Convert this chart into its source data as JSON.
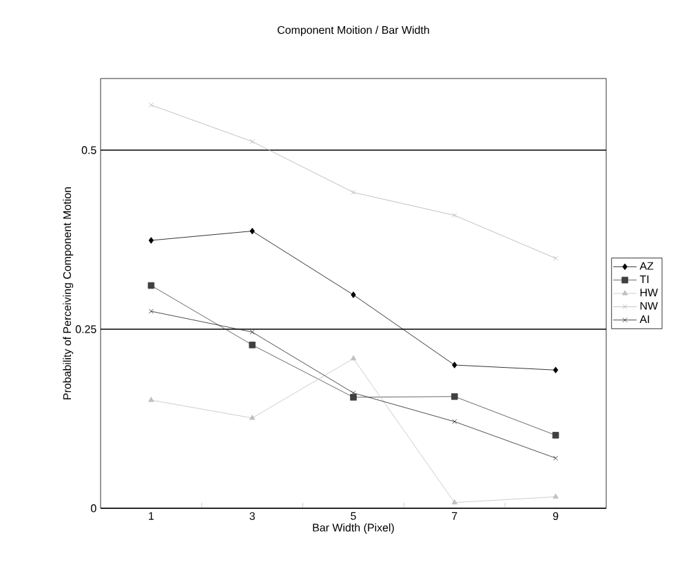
{
  "chart_data": {
    "type": "line",
    "title": "Component Moition / Bar Width",
    "xlabel": "Bar Width (Pixel)",
    "ylabel": "Probability of Perceiving Component Motion",
    "categories": [
      "1",
      "3",
      "5",
      "7",
      "9"
    ],
    "series": [
      {
        "name": "AZ",
        "color": "#000000",
        "marker": "diamond",
        "values": [
          0.374,
          0.387,
          0.298,
          0.2,
          0.193
        ]
      },
      {
        "name": "TI",
        "color": "#404040",
        "marker": "square",
        "values": [
          0.311,
          0.228,
          0.155,
          0.156,
          0.102
        ]
      },
      {
        "name": "HW",
        "color": "#c0c0c0",
        "marker": "triangle",
        "values": [
          0.151,
          0.126,
          0.209,
          0.008,
          0.016
        ]
      },
      {
        "name": "NW",
        "color": "#b0b0b0",
        "marker": "cross",
        "values": [
          0.563,
          0.512,
          0.441,
          0.409,
          0.349
        ]
      },
      {
        "name": "AI",
        "color": "#202020",
        "marker": "cross",
        "values": [
          0.275,
          0.246,
          0.161,
          0.121,
          0.07
        ]
      }
    ],
    "ylim": [
      0,
      0.6
    ],
    "yticks": [
      0,
      0.25,
      0.5
    ],
    "grid": "y",
    "legend": "right",
    "line_style": "solid"
  }
}
